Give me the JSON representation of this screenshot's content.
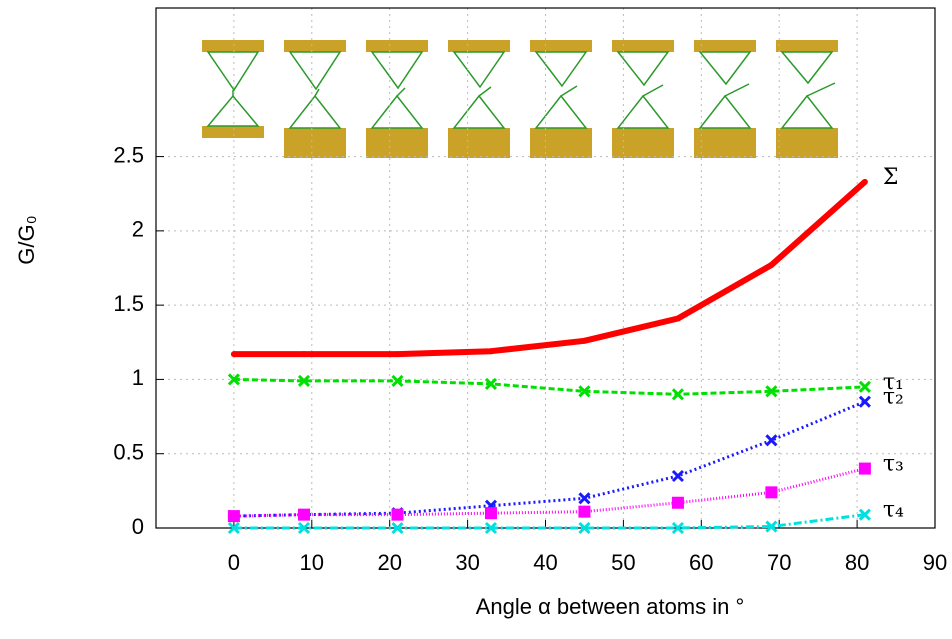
{
  "chart_data": {
    "type": "line",
    "x_label": "Angle α between atoms in °",
    "y_label": "G/G₀",
    "x": [
      0,
      9,
      21,
      33,
      45,
      57,
      69,
      81
    ],
    "xlim": [
      -10,
      90
    ],
    "xticks": [
      0,
      10,
      20,
      30,
      40,
      50,
      60,
      70,
      80,
      90
    ],
    "ylim": [
      0,
      3.5
    ],
    "yticks": [
      0,
      0.5,
      1,
      1.5,
      2,
      2.5
    ],
    "grid": true,
    "series": [
      {
        "name": "Σ",
        "color": "#ff0000",
        "values": [
          1.17,
          1.17,
          1.17,
          1.19,
          1.26,
          1.41,
          1.77,
          2.33
        ]
      },
      {
        "name": "τ₁",
        "color": "#00e000",
        "values": [
          1.0,
          0.99,
          0.99,
          0.97,
          0.92,
          0.9,
          0.92,
          0.95
        ]
      },
      {
        "name": "τ₂",
        "color": "#1a1aff",
        "values": [
          0.08,
          0.09,
          0.1,
          0.15,
          0.2,
          0.35,
          0.59,
          0.85
        ]
      },
      {
        "name": "τ₃",
        "color": "#ff00ff",
        "values": [
          0.08,
          0.09,
          0.09,
          0.1,
          0.11,
          0.17,
          0.24,
          0.4
        ]
      },
      {
        "name": "τ₄",
        "color": "#00e0e0",
        "values": [
          0,
          0,
          0,
          0,
          0,
          0,
          0.01,
          0.09
        ]
      }
    ]
  }
}
